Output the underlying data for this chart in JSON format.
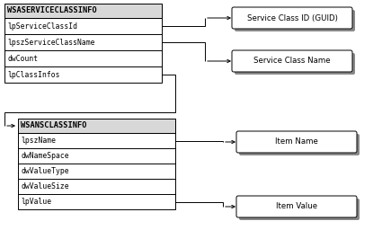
{
  "bg_color": "#ffffff",
  "box_border_color": "#000000",
  "shadow_color": "#888888",
  "struct1_title": "WSASERVICECLASSINFO",
  "struct1_fields": [
    "lpServiceClassId",
    "lpszServiceClassName",
    "dwCount",
    "lpClassInfos"
  ],
  "struct2_title": "WSANSCLASSINFO",
  "struct2_fields": [
    "lpszName",
    "dwNameSpace",
    "dwValueType",
    "dwValueSize",
    "lpValue"
  ],
  "label1_text": "Service Class ID (GUID)",
  "label2_text": "Service Class Name",
  "label3_text": "Item Name",
  "label4_text": "Item Value",
  "title_font_size": 6.2,
  "field_font_size": 5.8,
  "label_font_size": 6.2
}
